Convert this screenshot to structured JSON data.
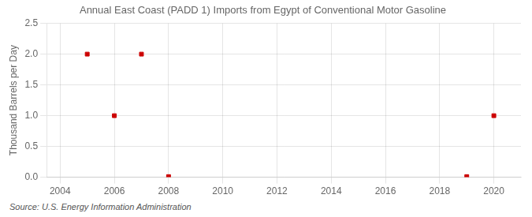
{
  "chart_data": {
    "type": "scatter",
    "title": "Annual East Coast (PADD 1) Imports from Egypt of Conventional Motor Gasoline",
    "ylabel": "Thousand Barrels per Day",
    "annotation": "Source: U.S. Energy Information Administration",
    "x": [
      2005,
      2006,
      2007,
      2008,
      2019,
      2020
    ],
    "values": [
      2.0,
      1.0,
      2.0,
      0.01,
      0.01,
      1.0
    ],
    "color": "#cc0000",
    "marker": "square",
    "xlim": [
      2003.5,
      2021.0
    ],
    "ylim": [
      0.0,
      2.5
    ],
    "xticks": [
      2004,
      2006,
      2008,
      2010,
      2012,
      2014,
      2016,
      2018,
      2020
    ],
    "yticks": [
      {
        "value": 0.0,
        "label": "0.0"
      },
      {
        "value": 0.5,
        "label": "0.5"
      },
      {
        "value": 1.0,
        "label": "1.0"
      },
      {
        "value": 1.5,
        "label": "1.5"
      },
      {
        "value": 2.0,
        "label": "2.0"
      },
      {
        "value": 2.5,
        "label": "2.5"
      }
    ],
    "grid": true
  }
}
